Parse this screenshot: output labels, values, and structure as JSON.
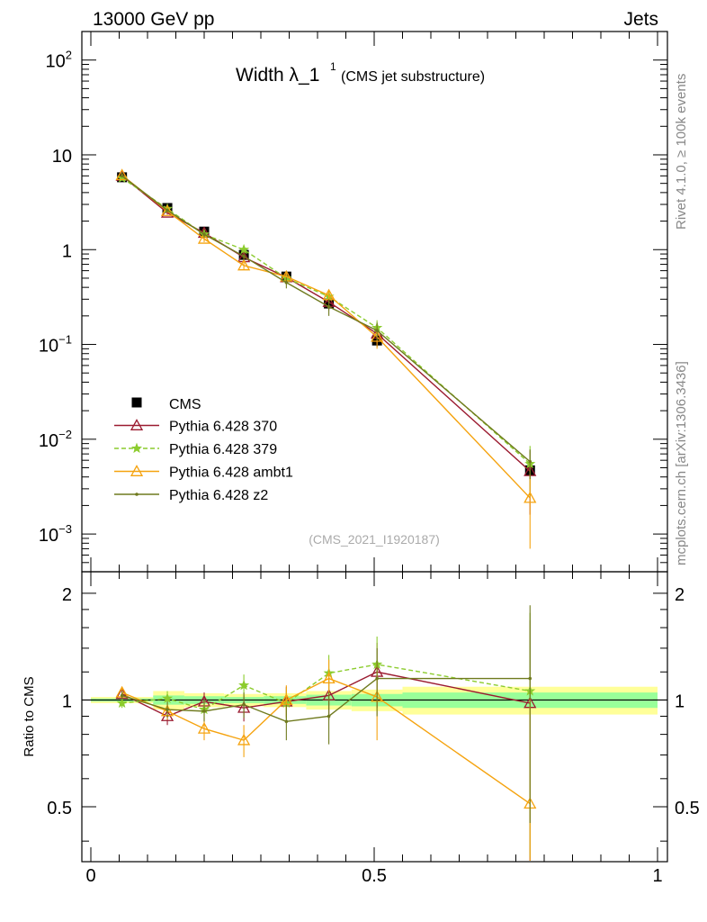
{
  "header": {
    "left": "13000 GeV pp",
    "right": "Jets"
  },
  "side_labels": {
    "top": "Rivet 4.1.0, ≥ 100k events",
    "bottom": "mcplots.cern.ch [arXiv:1306.3436]"
  },
  "chart_data": {
    "type": "line",
    "title_main": "Width λ_1",
    "title_sup": "1",
    "title_sub": "(CMS jet substructure)",
    "watermark": "(CMS_2021_I1920187)",
    "x_ticks": [
      "0",
      "0.5",
      "1"
    ],
    "xlim": [
      0,
      1
    ],
    "main_panel": {
      "yscale": "log",
      "ylim": [
        0.0004,
        200
      ],
      "y_ticks": [
        {
          "value": 100,
          "base": "10",
          "exp": "2"
        },
        {
          "value": 10,
          "base": "10",
          "exp": ""
        },
        {
          "value": 1,
          "base": "1",
          "exp": ""
        },
        {
          "value": 0.1,
          "base": "10",
          "exp": "−1"
        },
        {
          "value": 0.01,
          "base": "10",
          "exp": "−2"
        },
        {
          "value": 0.001,
          "base": "10",
          "exp": "−3"
        }
      ],
      "x": [
        0.055,
        0.135,
        0.2,
        0.27,
        0.345,
        0.42,
        0.505,
        0.775
      ],
      "data": {
        "name": "CMS",
        "values": [
          5.8,
          2.75,
          1.55,
          0.88,
          0.52,
          0.27,
          0.11,
          0.0047
        ],
        "errors": [
          0.3,
          0.15,
          0.08,
          0.06,
          0.05,
          0.03,
          0.015,
          0.0008
        ]
      },
      "series": [
        {
          "name": "Pythia 6.428 370",
          "color": "#9b1b30",
          "marker": "triangle-open",
          "dashed": false,
          "values": [
            6.0,
            2.45,
            1.5,
            0.83,
            0.51,
            0.28,
            0.13,
            0.0046
          ],
          "errors": [
            0.2,
            0.1,
            0.1,
            0.07,
            0.06,
            0.05,
            0.03,
            0.003
          ]
        },
        {
          "name": "Pythia 6.428 379",
          "color": "#8ccc2e",
          "marker": "star",
          "dashed": true,
          "values": [
            5.7,
            2.7,
            1.45,
            1.0,
            0.5,
            0.32,
            0.15,
            0.0055
          ],
          "errors": [
            0.2,
            0.1,
            0.1,
            0.07,
            0.06,
            0.05,
            0.03,
            0.003
          ]
        },
        {
          "name": "Pythia 6.428 ambt1",
          "color": "#f5a30f",
          "marker": "triangle-open",
          "dashed": false,
          "values": [
            6.1,
            2.55,
            1.3,
            0.68,
            0.52,
            0.33,
            0.12,
            0.0024
          ],
          "errors": [
            0.2,
            0.1,
            0.1,
            0.07,
            0.06,
            0.05,
            0.03,
            0.0017
          ]
        },
        {
          "name": "Pythia 6.428 z2",
          "color": "#6f7a1e",
          "marker": "dot",
          "dashed": false,
          "values": [
            6.0,
            2.6,
            1.45,
            0.85,
            0.45,
            0.25,
            0.14,
            0.0058
          ],
          "errors": [
            0.2,
            0.1,
            0.1,
            0.07,
            0.06,
            0.05,
            0.03,
            0.002
          ]
        }
      ]
    },
    "ratio_panel": {
      "ylabel": "Ratio to CMS",
      "ylim": [
        0.35,
        2.3
      ],
      "y_ticks": [
        "2",
        "1",
        "0.5"
      ],
      "bands": {
        "edges": [
          0,
          0.11,
          0.165,
          0.235,
          0.305,
          0.38,
          0.46,
          0.55,
          1.0
        ],
        "yellow": [
          0.02,
          0.06,
          0.045,
          0.04,
          0.045,
          0.06,
          0.07,
          0.09
        ],
        "green": [
          0.01,
          0.03,
          0.025,
          0.02,
          0.025,
          0.035,
          0.04,
          0.05
        ]
      },
      "x": [
        0.055,
        0.135,
        0.2,
        0.27,
        0.345,
        0.42,
        0.505,
        0.775
      ],
      "series": [
        {
          "name": "Pythia 6.428 370",
          "values": [
            1.04,
            0.9,
            0.99,
            0.95,
            0.99,
            1.03,
            1.2,
            0.98
          ],
          "errors": [
            0.03,
            0.05,
            0.06,
            0.08,
            0.1,
            0.15,
            0.25,
            0.7
          ]
        },
        {
          "name": "Pythia 6.428 379",
          "values": [
            0.98,
            1.01,
            0.94,
            1.1,
            0.98,
            1.19,
            1.26,
            1.06
          ],
          "errors": [
            0.03,
            0.05,
            0.06,
            0.08,
            0.1,
            0.15,
            0.25,
            0.7
          ]
        },
        {
          "name": "Pythia 6.428 ambt1",
          "values": [
            1.05,
            0.93,
            0.83,
            0.77,
            1.0,
            1.15,
            1.02,
            0.51
          ],
          "errors": [
            0.03,
            0.05,
            0.06,
            0.08,
            0.1,
            0.15,
            0.25,
            0.5
          ]
        },
        {
          "name": "Pythia 6.428 z2",
          "values": [
            1.03,
            0.94,
            0.93,
            0.97,
            0.87,
            0.9,
            1.15,
            1.15
          ],
          "errors": [
            0.03,
            0.05,
            0.06,
            0.08,
            0.1,
            0.15,
            0.25,
            0.7
          ]
        }
      ]
    }
  }
}
